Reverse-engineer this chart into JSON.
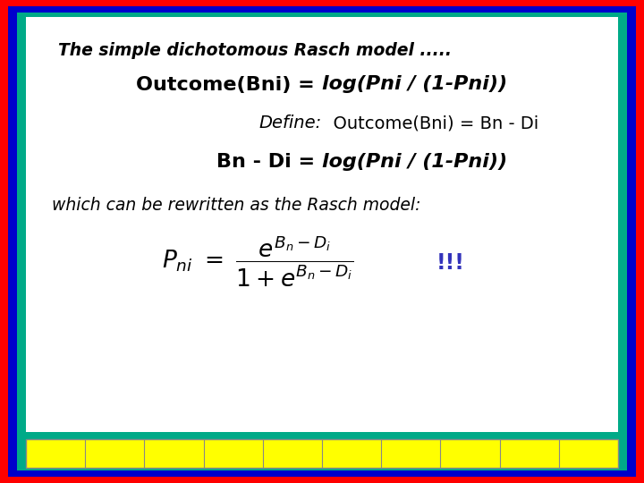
{
  "bg_color": "#ffffff",
  "border_outer_color": "#ff0000",
  "border_mid_color": "#0000cc",
  "border_inner_color": "#00aa88",
  "bottom_bar_color": "#ffff00",
  "bottom_bar_border": "#888888",
  "title_text": "The simple dichotomous Rasch model .....",
  "line2a": "Outcome(Bni) = ",
  "line2b": "log(Pni / (1-Pni))",
  "line3a": "Define:",
  "line3b": "  Outcome(Bni) = Bn - Di",
  "line4a": "Bn - Di = ",
  "line4b": "log(Pni / (1-Pni))",
  "line5": "which can be rewritten as the Rasch model:",
  "exclaim": "!!!",
  "exclaim_color": "#3333bb",
  "text_color": "#000000",
  "border_thickness": [
    0.013,
    0.013,
    0.01
  ],
  "white_area": [
    0.04,
    0.105,
    0.92,
    0.86
  ],
  "yellow_bar": [
    0.04,
    0.032,
    0.92,
    0.058
  ],
  "n_bar_divs": 10
}
